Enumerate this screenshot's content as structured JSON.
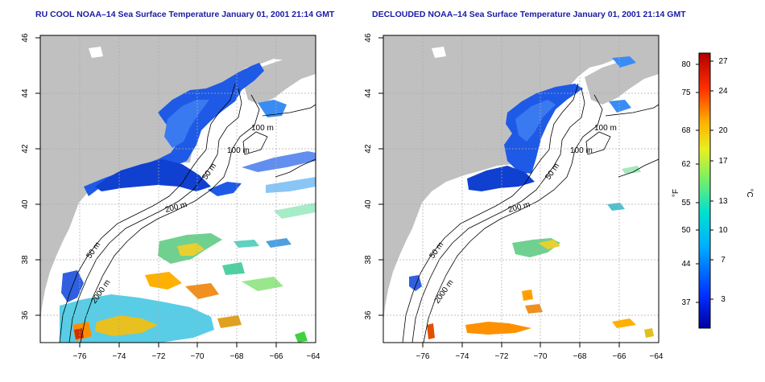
{
  "panels": [
    {
      "title": "RU COOL NOAA–14 Sea Surface Temperature January 01, 2001 21:14 GMT",
      "isobaths": [
        "100 m",
        "100 m",
        "50 m",
        "200 m",
        "50 m",
        "2000 m"
      ]
    },
    {
      "title": "DECLOUDED NOAA–14 Sea Surface Temperature January 01, 2001 21:14 GMT",
      "isobaths": [
        "100 m",
        "100 m",
        "50 m",
        "200 m",
        "50 m",
        "2000 m"
      ]
    }
  ],
  "lat_ticks": [
    "46",
    "44",
    "42",
    "40",
    "38",
    "36"
  ],
  "lon_ticks": [
    "−76",
    "−74",
    "−72",
    "−70",
    "−68",
    "−66",
    "−64"
  ],
  "colorbar": {
    "f_label": "°F",
    "c_label": "°C",
    "f_ticks": [
      "80",
      "75",
      "68",
      "62",
      "55",
      "50",
      "44",
      "37"
    ],
    "c_ticks": [
      "27",
      "24",
      "20",
      "17",
      "13",
      "10",
      "7",
      "3"
    ]
  },
  "colors": {
    "land": "#c0c0c0",
    "ocean": "#ffffff",
    "title": "#1a1aa6",
    "grid": "#aaaaaa"
  }
}
